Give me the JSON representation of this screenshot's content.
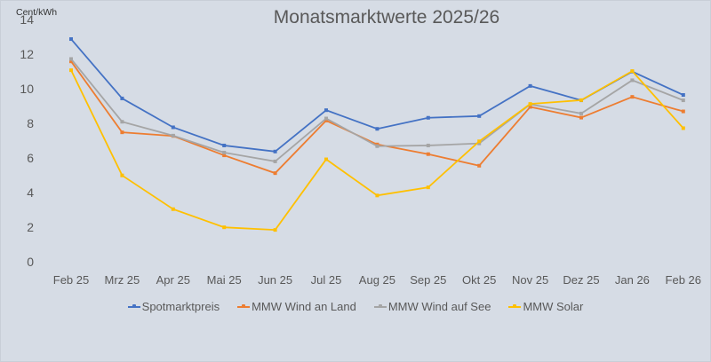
{
  "chart_data": {
    "type": "line",
    "title": "Monatsmarktwerte 2025/26",
    "ylabel": "Cent/kWh",
    "xlabel": "",
    "ylim": [
      0,
      14
    ],
    "yticks": [
      0,
      2,
      4,
      6,
      8,
      10,
      12,
      14
    ],
    "grid": false,
    "legend_position": "bottom",
    "categories": [
      "Feb 25",
      "Mrz 25",
      "Apr 25",
      "Mai 25",
      "Jun 25",
      "Jul 25",
      "Aug 25",
      "Sep 25",
      "Okt 25",
      "Nov 25",
      "Dez 25",
      "Jan 26",
      "Feb 26"
    ],
    "series": [
      {
        "name": "Spotmarktpreis",
        "color": "#4472c4",
        "values": [
          12.87,
          9.44,
          7.77,
          6.72,
          6.37,
          8.76,
          7.68,
          8.32,
          8.42,
          10.16,
          9.33,
          10.99,
          9.64
        ]
      },
      {
        "name": "MMW Wind an Land",
        "color": "#ed7d31",
        "values": [
          11.58,
          7.48,
          7.27,
          6.15,
          5.12,
          8.16,
          6.78,
          6.22,
          5.55,
          8.95,
          8.33,
          9.53,
          8.69
        ]
      },
      {
        "name": "MMW Wind auf See",
        "color": "#a5a5a5",
        "values": [
          11.72,
          8.09,
          7.29,
          6.31,
          5.8,
          8.28,
          6.68,
          6.72,
          6.84,
          9.1,
          8.57,
          10.49,
          9.33
        ]
      },
      {
        "name": "MMW Solar",
        "color": "#ffc000",
        "values": [
          11.07,
          4.99,
          3.04,
          1.99,
          1.84,
          5.92,
          3.83,
          4.3,
          6.96,
          9.12,
          9.34,
          11.02,
          7.72
        ]
      }
    ]
  }
}
